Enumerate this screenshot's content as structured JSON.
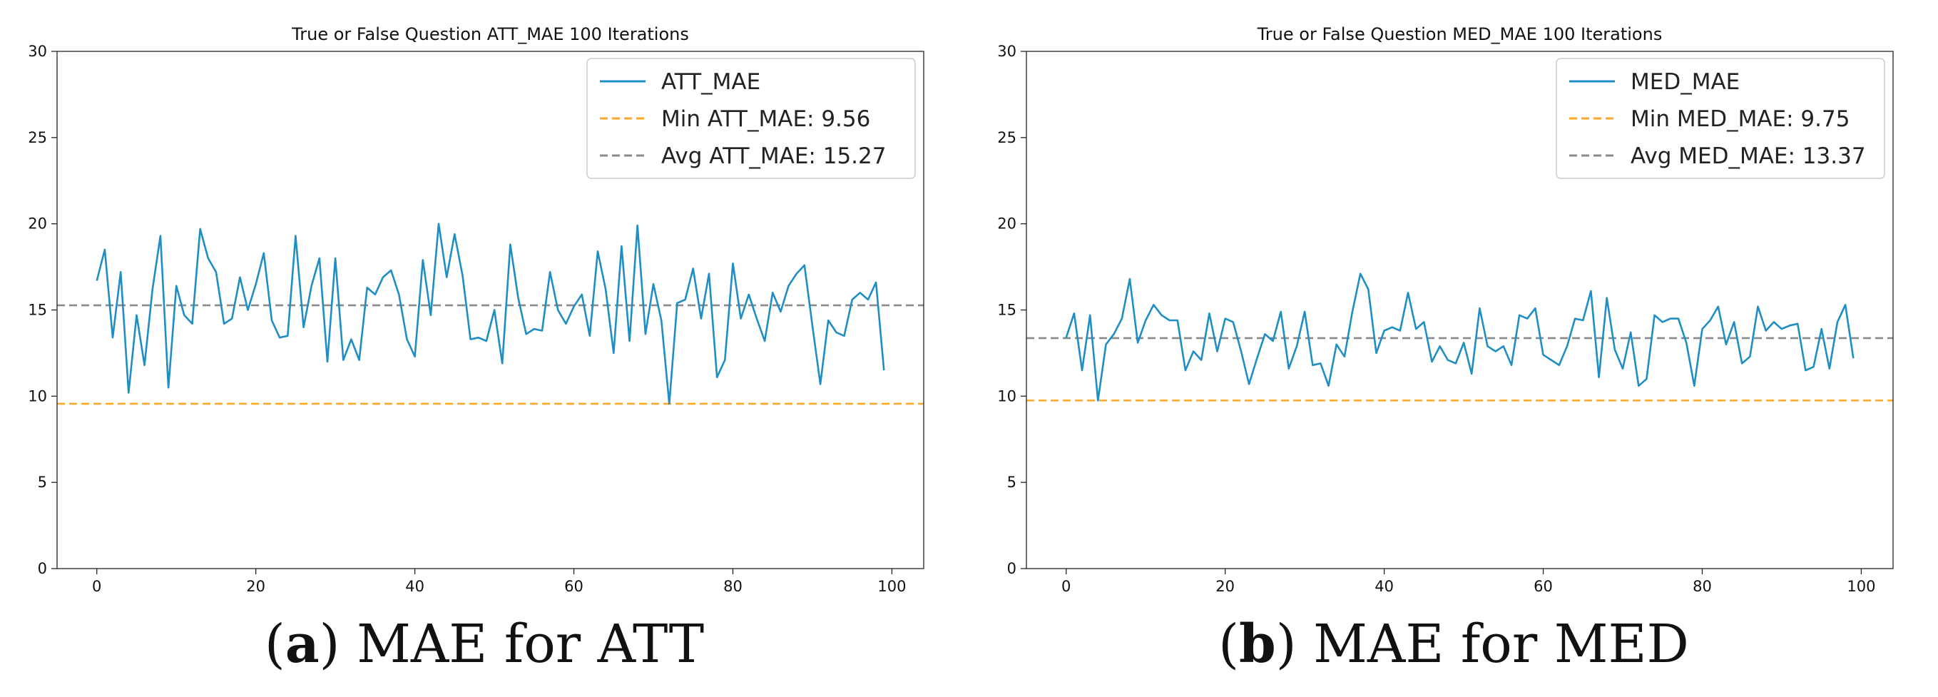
{
  "chart_data": [
    {
      "type": "line",
      "title": "True or False Question ATT_MAE 100 Iterations",
      "caption_letter": "a",
      "caption_text": "MAE for ATT",
      "xlabel": "",
      "ylabel": "",
      "xlim": [
        -5,
        104
      ],
      "ylim": [
        0,
        30
      ],
      "xticks": [
        0,
        20,
        40,
        60,
        80,
        100
      ],
      "yticks": [
        0,
        5,
        10,
        15,
        20,
        25,
        30
      ],
      "grid": false,
      "legend_position": "top-right",
      "series": [
        {
          "name": "ATT_MAE",
          "color": "#1f8ec4",
          "x": [
            0,
            1,
            2,
            3,
            4,
            5,
            6,
            7,
            8,
            9,
            10,
            11,
            12,
            13,
            14,
            15,
            16,
            17,
            18,
            19,
            20,
            21,
            22,
            23,
            24,
            25,
            26,
            27,
            28,
            29,
            30,
            31,
            32,
            33,
            34,
            35,
            36,
            37,
            38,
            39,
            40,
            41,
            42,
            43,
            44,
            45,
            46,
            47,
            48,
            49,
            50,
            51,
            52,
            53,
            54,
            55,
            56,
            57,
            58,
            59,
            60,
            61,
            62,
            63,
            64,
            65,
            66,
            67,
            68,
            69,
            70,
            71,
            72,
            73,
            74,
            75,
            76,
            77,
            78,
            79,
            80,
            81,
            82,
            83,
            84,
            85,
            86,
            87,
            88,
            89,
            90,
            91,
            92,
            93,
            94,
            95,
            96,
            97,
            98,
            99
          ],
          "values": [
            16.7,
            18.5,
            13.4,
            17.2,
            10.2,
            14.7,
            11.8,
            16.2,
            19.3,
            10.5,
            16.4,
            14.7,
            14.2,
            19.7,
            18.0,
            17.2,
            14.2,
            14.5,
            16.9,
            15.0,
            16.5,
            18.3,
            14.4,
            13.4,
            13.5,
            19.3,
            14.0,
            16.4,
            18.0,
            12.0,
            18.0,
            12.1,
            13.3,
            12.1,
            16.3,
            15.9,
            16.9,
            17.3,
            15.9,
            13.3,
            12.3,
            17.9,
            14.7,
            20.0,
            16.9,
            19.4,
            17.0,
            13.3,
            13.4,
            13.2,
            15.0,
            11.9,
            18.8,
            15.7,
            13.6,
            13.9,
            13.8,
            17.2,
            15.0,
            14.2,
            15.2,
            15.9,
            13.5,
            18.4,
            16.2,
            12.5,
            18.7,
            13.2,
            19.9,
            13.6,
            16.5,
            14.4,
            9.56,
            15.4,
            15.6,
            17.4,
            14.5,
            17.1,
            11.1,
            12.1,
            17.7,
            14.5,
            15.9,
            14.5,
            13.2,
            16.0,
            14.9,
            16.4,
            17.1,
            17.6,
            14.1,
            10.7,
            14.4,
            13.7,
            13.5,
            15.6,
            16.0,
            15.6,
            16.6,
            11.5
          ]
        }
      ],
      "reference_lines": [
        {
          "name": "Min ATT_MAE: 9.56",
          "value": 9.56,
          "color": "#ffa726",
          "style": "dashed"
        },
        {
          "name": "Avg ATT_MAE: 15.27",
          "value": 15.27,
          "color": "#8a8a8a",
          "style": "dashed"
        }
      ]
    },
    {
      "type": "line",
      "title": "True or False Question MED_MAE 100 Iterations",
      "caption_letter": "b",
      "caption_text": "MAE for MED",
      "xlabel": "",
      "ylabel": "",
      "xlim": [
        -5,
        104
      ],
      "ylim": [
        0,
        30
      ],
      "xticks": [
        0,
        20,
        40,
        60,
        80,
        100
      ],
      "yticks": [
        0,
        5,
        10,
        15,
        20,
        25,
        30
      ],
      "grid": false,
      "legend_position": "top-right",
      "series": [
        {
          "name": "MED_MAE",
          "color": "#1f8ec4",
          "x": [
            0,
            1,
            2,
            3,
            4,
            5,
            6,
            7,
            8,
            9,
            10,
            11,
            12,
            13,
            14,
            15,
            16,
            17,
            18,
            19,
            20,
            21,
            22,
            23,
            24,
            25,
            26,
            27,
            28,
            29,
            30,
            31,
            32,
            33,
            34,
            35,
            36,
            37,
            38,
            39,
            40,
            41,
            42,
            43,
            44,
            45,
            46,
            47,
            48,
            49,
            50,
            51,
            52,
            53,
            54,
            55,
            56,
            57,
            58,
            59,
            60,
            61,
            62,
            63,
            64,
            65,
            66,
            67,
            68,
            69,
            70,
            71,
            72,
            73,
            74,
            75,
            76,
            77,
            78,
            79,
            80,
            81,
            82,
            83,
            84,
            85,
            86,
            87,
            88,
            89,
            90,
            91,
            92,
            93,
            94,
            95,
            96,
            97,
            98,
            99
          ],
          "values": [
            13.4,
            14.8,
            11.5,
            14.7,
            9.75,
            13.0,
            13.6,
            14.5,
            16.8,
            13.1,
            14.4,
            15.3,
            14.7,
            14.4,
            14.4,
            11.5,
            12.6,
            12.1,
            14.8,
            12.6,
            14.5,
            14.3,
            12.6,
            10.7,
            12.2,
            13.6,
            13.2,
            14.9,
            11.6,
            12.9,
            14.9,
            11.8,
            11.9,
            10.6,
            13.0,
            12.3,
            14.9,
            17.1,
            16.2,
            12.5,
            13.8,
            14.0,
            13.8,
            16.0,
            13.9,
            14.3,
            12.0,
            12.9,
            12.1,
            11.9,
            13.1,
            11.3,
            15.1,
            12.9,
            12.6,
            12.9,
            11.8,
            14.7,
            14.5,
            15.1,
            12.4,
            12.1,
            11.8,
            12.9,
            14.5,
            14.4,
            16.1,
            11.1,
            15.7,
            12.7,
            11.6,
            13.7,
            10.6,
            11.0,
            14.7,
            14.3,
            14.5,
            14.5,
            13.1,
            10.6,
            13.9,
            14.4,
            15.2,
            13.0,
            14.3,
            11.9,
            12.3,
            15.2,
            13.8,
            14.3,
            13.9,
            14.1,
            14.2,
            11.5,
            11.7,
            13.9,
            11.6,
            14.3,
            15.3,
            12.2
          ]
        }
      ],
      "reference_lines": [
        {
          "name": "Min MED_MAE: 9.75",
          "value": 9.75,
          "color": "#ffa726",
          "style": "dashed"
        },
        {
          "name": "Avg MED_MAE: 13.37",
          "value": 13.37,
          "color": "#8a8a8a",
          "style": "dashed"
        }
      ]
    }
  ]
}
